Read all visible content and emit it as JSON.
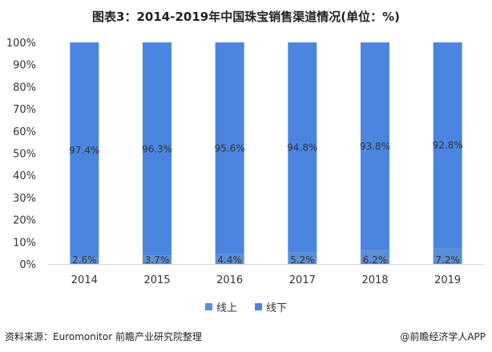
{
  "title": "图表3：2014-2019年中国珠宝销售渠道情况(单位：%)",
  "footer": {
    "source": "资料来源：Euromonitor 前瞻产业研究院整理",
    "brand": "@前瞻经济学人APP"
  },
  "chart_data": {
    "type": "bar",
    "stacked": true,
    "categories": [
      "2014",
      "2015",
      "2016",
      "2017",
      "2018",
      "2019"
    ],
    "series": [
      {
        "name": "线上",
        "color": "#5B8FD9",
        "values": [
          2.6,
          3.7,
          4.4,
          5.2,
          6.2,
          7.2
        ],
        "labels": [
          "2.6%",
          "3.7%",
          "4.4%",
          "5.2%",
          "6.2%",
          "7.2%"
        ]
      },
      {
        "name": "线下",
        "color": "#4A86E0",
        "values": [
          97.4,
          96.3,
          95.6,
          94.8,
          93.8,
          92.8
        ],
        "labels": [
          "97.4%",
          "96.3%",
          "95.6%",
          "94.8%",
          "93.8%",
          "92.8%"
        ]
      }
    ],
    "y_ticks": [
      "0%",
      "10%",
      "20%",
      "30%",
      "40%",
      "50%",
      "60%",
      "70%",
      "80%",
      "90%",
      "100%"
    ],
    "ylim": [
      0,
      100
    ],
    "legend_position": "bottom",
    "grid": false
  }
}
